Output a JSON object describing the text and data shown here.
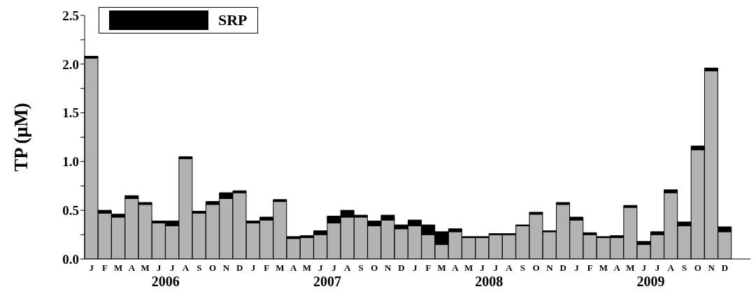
{
  "chart_data": {
    "type": "bar",
    "stacked": true,
    "ylabel": "TP (μM)",
    "categories": [
      "J",
      "F",
      "M",
      "A",
      "M",
      "J",
      "J",
      "A",
      "S",
      "O",
      "N",
      "D",
      "J",
      "F",
      "M",
      "A",
      "M",
      "J",
      "J",
      "A",
      "S",
      "O",
      "N",
      "D",
      "J",
      "F",
      "M",
      "A",
      "M",
      "J",
      "J",
      "A",
      "S",
      "O",
      "N",
      "D",
      "J",
      "F",
      "M",
      "A",
      "M",
      "J",
      "J",
      "A",
      "S",
      "O",
      "N",
      "D"
    ],
    "series": [
      {
        "color": "#b3b3b3",
        "values": [
          2.06,
          0.47,
          0.43,
          0.62,
          0.56,
          0.37,
          0.34,
          1.03,
          0.47,
          0.56,
          0.62,
          0.68,
          0.37,
          0.4,
          0.59,
          0.21,
          0.22,
          0.25,
          0.37,
          0.43,
          0.43,
          0.34,
          0.4,
          0.31,
          0.34,
          0.25,
          0.15,
          0.28,
          0.22,
          0.22,
          0.25,
          0.25,
          0.34,
          0.46,
          0.28,
          0.56,
          0.4,
          0.25,
          0.22,
          0.22,
          0.53,
          0.15,
          0.25,
          0.68,
          0.34,
          1.12,
          1.93,
          0.28
        ]
      },
      {
        "name": "SRP",
        "color": "#000000",
        "values": [
          0.02,
          0.03,
          0.03,
          0.03,
          0.02,
          0.02,
          0.05,
          0.02,
          0.02,
          0.03,
          0.06,
          0.02,
          0.02,
          0.03,
          0.02,
          0.02,
          0.02,
          0.04,
          0.07,
          0.07,
          0.02,
          0.05,
          0.05,
          0.04,
          0.06,
          0.1,
          0.13,
          0.03,
          0.01,
          0.01,
          0.01,
          0.01,
          0.01,
          0.02,
          0.01,
          0.02,
          0.03,
          0.02,
          0.01,
          0.02,
          0.02,
          0.03,
          0.03,
          0.03,
          0.04,
          0.04,
          0.03,
          0.05
        ]
      }
    ],
    "ylim": [
      0,
      2.5
    ],
    "yticks": [
      {
        "value": 0,
        "label": "0.0"
      },
      {
        "value": 0.25,
        "label": null
      },
      {
        "value": 0.5,
        "label": "0.5"
      },
      {
        "value": 0.75,
        "label": null
      },
      {
        "value": 1,
        "label": "1.0"
      },
      {
        "value": 1.25,
        "label": null
      },
      {
        "value": 1.5,
        "label": "1.5"
      },
      {
        "value": 1.75,
        "label": null
      },
      {
        "value": 2,
        "label": "2.0"
      },
      {
        "value": 2.25,
        "label": null
      },
      {
        "value": 2.5,
        "label": "2.5"
      }
    ],
    "legend": "top left",
    "grid": false,
    "annotations": [
      "2006",
      "2007",
      "2008",
      "2009"
    ]
  }
}
